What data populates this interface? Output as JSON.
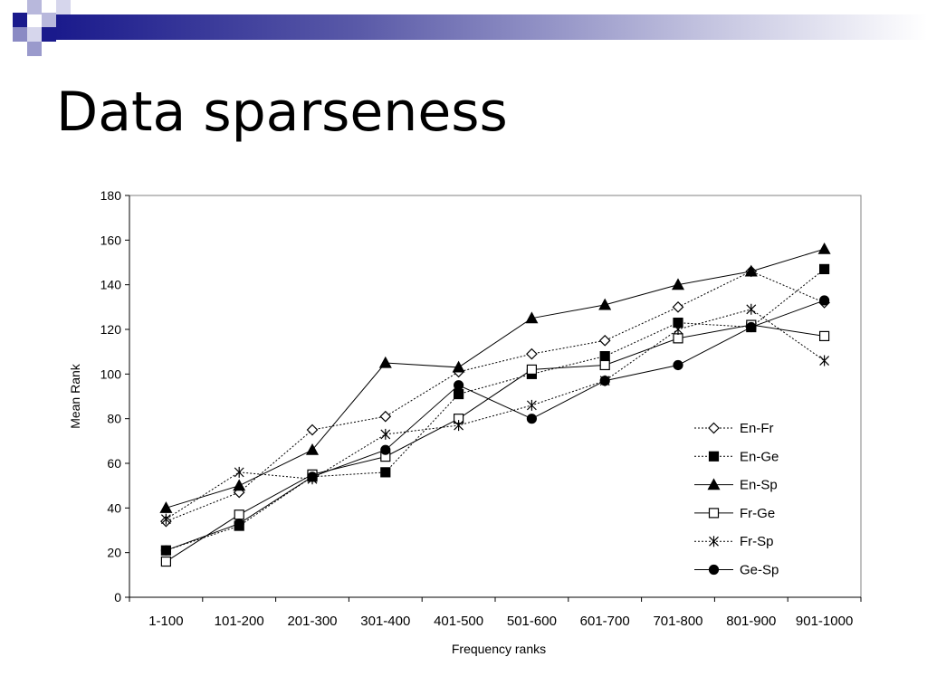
{
  "slide": {
    "title": "Data sparseness",
    "decor_colors": {
      "dark": "#1a1a8c",
      "mid": "#6a6ab4",
      "light": "#b8b8dc"
    }
  },
  "chart_data": {
    "type": "line",
    "title": "",
    "xlabel": "Frequency ranks",
    "ylabel": "Mean Rank",
    "ylim": [
      0,
      180
    ],
    "yticks": [
      0,
      20,
      40,
      60,
      80,
      100,
      120,
      140,
      160,
      180
    ],
    "grid": false,
    "legend_position": "bottom-right",
    "categories": [
      "1-100",
      "101-200",
      "201-300",
      "301-400",
      "401-500",
      "501-600",
      "601-700",
      "701-800",
      "801-900",
      "901-1000"
    ],
    "series": [
      {
        "name": "En-Fr",
        "marker": "diamond-open",
        "line": "dotted",
        "values": [
          34,
          47,
          75,
          81,
          101,
          109,
          115,
          130,
          146,
          132
        ]
      },
      {
        "name": "En-Ge",
        "marker": "square-filled",
        "line": "dotted",
        "values": [
          21,
          32,
          54,
          56,
          91,
          100,
          108,
          123,
          121,
          147
        ]
      },
      {
        "name": "En-Sp",
        "marker": "triangle-filled",
        "line": "solid",
        "values": [
          40,
          50,
          66,
          105,
          103,
          125,
          131,
          140,
          146,
          156
        ]
      },
      {
        "name": "Fr-Ge",
        "marker": "square-open",
        "line": "solid",
        "values": [
          16,
          37,
          55,
          63,
          80,
          102,
          104,
          116,
          122,
          117
        ]
      },
      {
        "name": "Fr-Sp",
        "marker": "asterisk",
        "line": "dotted",
        "values": [
          35,
          56,
          53,
          73,
          77,
          86,
          97,
          120,
          129,
          106
        ]
      },
      {
        "name": "Ge-Sp",
        "marker": "circle-filled",
        "line": "solid",
        "values": [
          21,
          33,
          54,
          66,
          95,
          80,
          97,
          104,
          121,
          133
        ]
      }
    ]
  }
}
